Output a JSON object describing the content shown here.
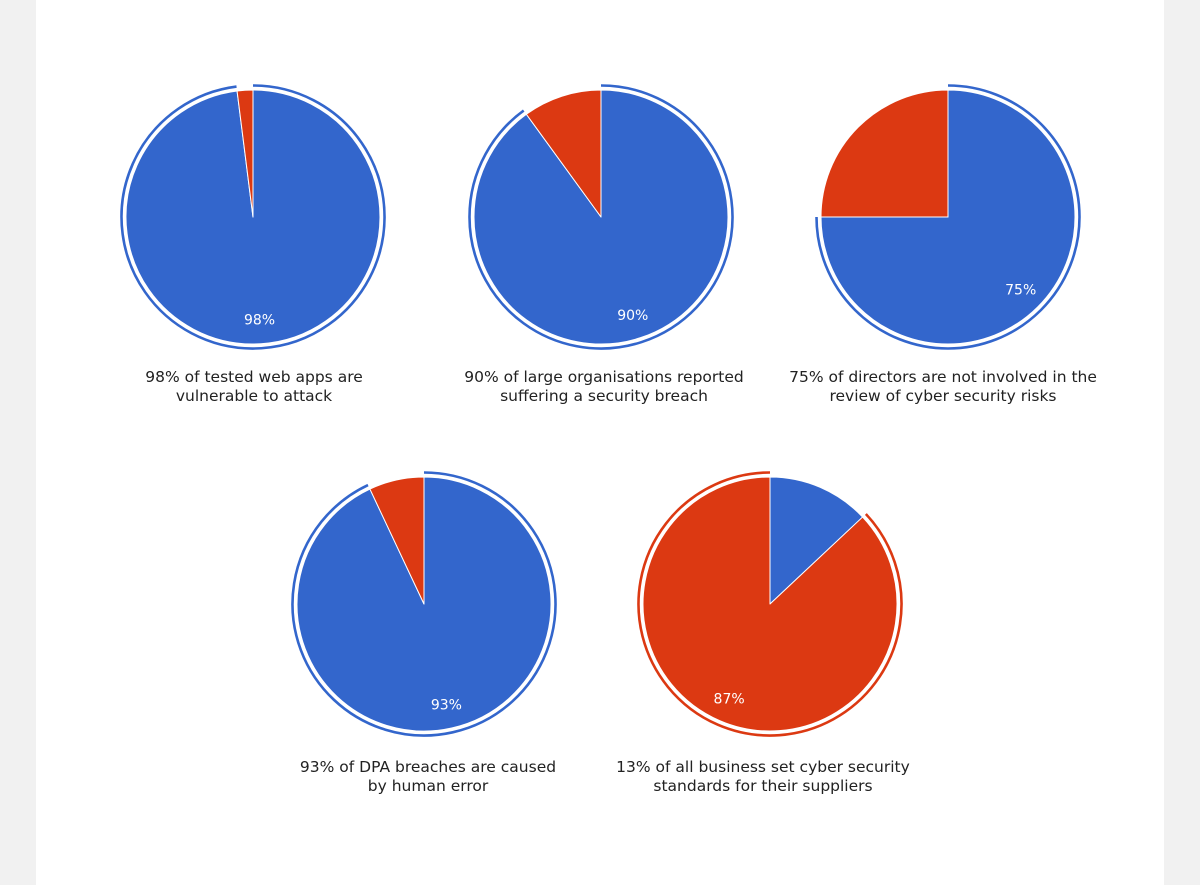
{
  "colors": {
    "positive": "#3366cc",
    "negative": "#dc3912",
    "background": "#ffffff",
    "page": "#f1f1f1"
  },
  "chart_data": [
    {
      "type": "pie",
      "caption_lines": [
        "98% of tested web apps are",
        "vulnerable to attack"
      ],
      "slices": [
        {
          "value": 98,
          "color": "#3366cc",
          "label": "98%"
        },
        {
          "value": 2,
          "color": "#dc3912",
          "label": ""
        }
      ],
      "highlighted_slice": 0
    },
    {
      "type": "pie",
      "caption_lines": [
        "90% of large organisations reported",
        "suffering a security breach"
      ],
      "slices": [
        {
          "value": 90,
          "color": "#3366cc",
          "label": "90%"
        },
        {
          "value": 10,
          "color": "#dc3912",
          "label": ""
        }
      ],
      "highlighted_slice": 0
    },
    {
      "type": "pie",
      "caption_lines": [
        "75% of directors are not involved in the",
        "review of cyber security risks"
      ],
      "slices": [
        {
          "value": 75,
          "color": "#3366cc",
          "label": "75%"
        },
        {
          "value": 25,
          "color": "#dc3912",
          "label": ""
        }
      ],
      "highlighted_slice": 0
    },
    {
      "type": "pie",
      "caption_lines": [
        "93% of DPA breaches are caused",
        "by human error"
      ],
      "slices": [
        {
          "value": 93,
          "color": "#3366cc",
          "label": "93%"
        },
        {
          "value": 7,
          "color": "#dc3912",
          "label": ""
        }
      ],
      "highlighted_slice": 0
    },
    {
      "type": "pie",
      "caption_lines": [
        "13% of all business set cyber security",
        "standards for their suppliers"
      ],
      "slices": [
        {
          "value": 13,
          "color": "#3366cc",
          "label": ""
        },
        {
          "value": 87,
          "color": "#dc3912",
          "label": "87%"
        }
      ],
      "highlighted_slice": 1
    }
  ]
}
